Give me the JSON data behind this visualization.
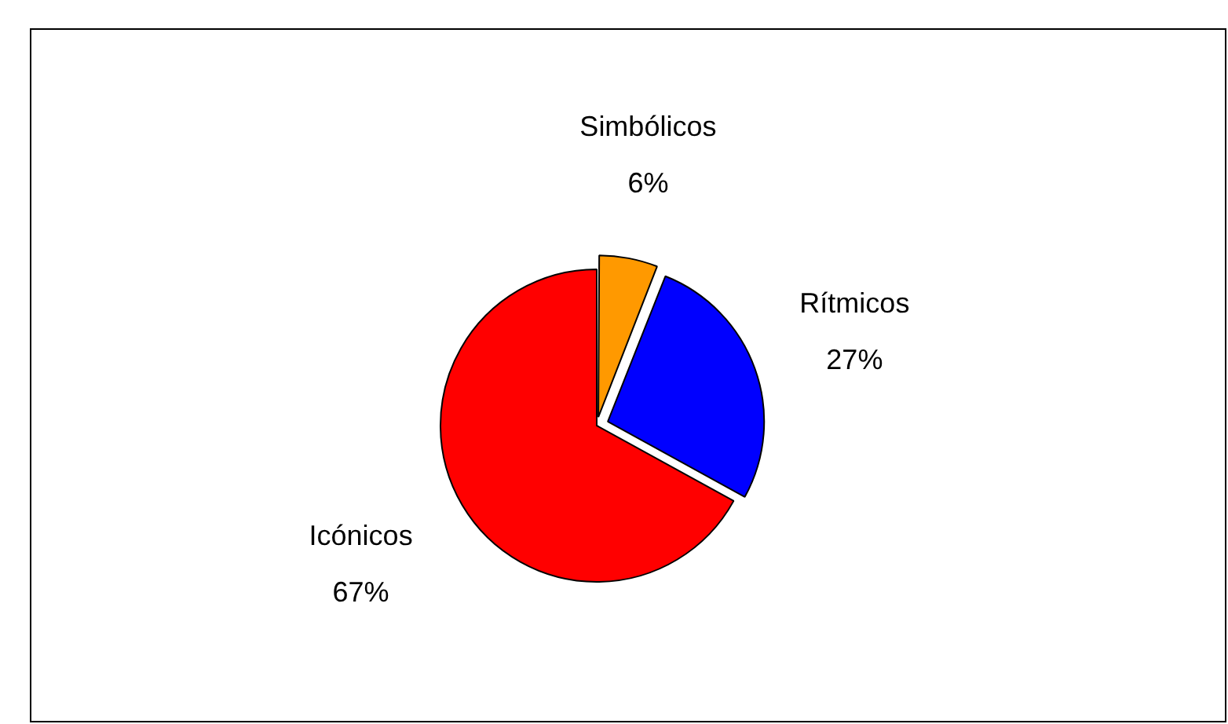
{
  "chart_data": {
    "type": "pie",
    "categories": [
      "Simbólicos",
      "Rítmicos",
      "Icónicos"
    ],
    "values": [
      6,
      27,
      67
    ],
    "colors": [
      "#ff9900",
      "#0000ff",
      "#ff0000"
    ],
    "value_labels": [
      "6%",
      "27%",
      "67%"
    ],
    "legend": false
  }
}
